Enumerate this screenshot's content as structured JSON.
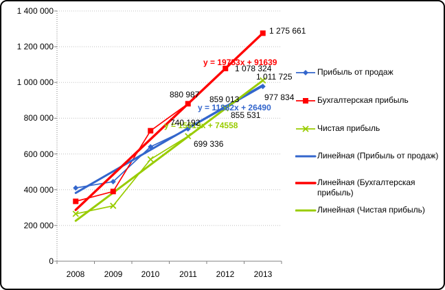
{
  "chart_data": {
    "type": "line",
    "title": "",
    "xlabel": "",
    "ylabel": "",
    "x_categories": [
      "2008",
      "2009",
      "2010",
      "2011",
      "2012",
      "2013"
    ],
    "y_ticks": [
      "0",
      "200 000",
      "400 000",
      "600 000",
      "800 000",
      "1 000 000",
      "1 200 000",
      "1 400 000"
    ],
    "ylim": [
      0,
      1400000
    ],
    "ytick_step": 200000,
    "grid": true,
    "legend_position": "right",
    "series": [
      {
        "name": "Прибыль от продаж",
        "color": "#3366CC",
        "marker": "diamond",
        "values": [
          410000,
          445000,
          640000,
          740192,
          859013,
          977834
        ]
      },
      {
        "name": "Бухгалтерская прибыль",
        "color": "#FF0000",
        "marker": "square",
        "values": [
          335000,
          390000,
          730000,
          880987,
          1078324,
          1275661
        ]
      },
      {
        "name": "Чистая прибыль",
        "color": "#99CC00",
        "marker": "x",
        "values": [
          265000,
          310000,
          570000,
          699336,
          855531,
          1011725
        ]
      }
    ],
    "trendlines": [
      {
        "name": "Линейная (Прибыль от продаж)",
        "color": "#3366CC",
        "equation": "y = 11882x + 26490",
        "y_start": 382000,
        "y_end": 985000,
        "width": 3
      },
      {
        "name": "Линейная (Бухгалтерская прибыль)",
        "color": "#FF0000",
        "equation": "y = 19753x + 91639",
        "y_start": 287000,
        "y_end": 1276000,
        "width": 3.4
      },
      {
        "name": "Линейная (Чистая прибыль)",
        "color": "#99CC00",
        "equation": "y = 15619x + 74558",
        "y_start": 226000,
        "y_end": 1011000,
        "width": 3
      }
    ]
  },
  "point_labels": [
    "1 275 661",
    "1 078 324",
    "1 011 725",
    "977 834",
    "880 987",
    "859 013",
    "855 531",
    "740 192",
    "699 336"
  ],
  "colors": {
    "gridline": "#BFBFBF",
    "axis": "#808080",
    "text": "#000000"
  }
}
